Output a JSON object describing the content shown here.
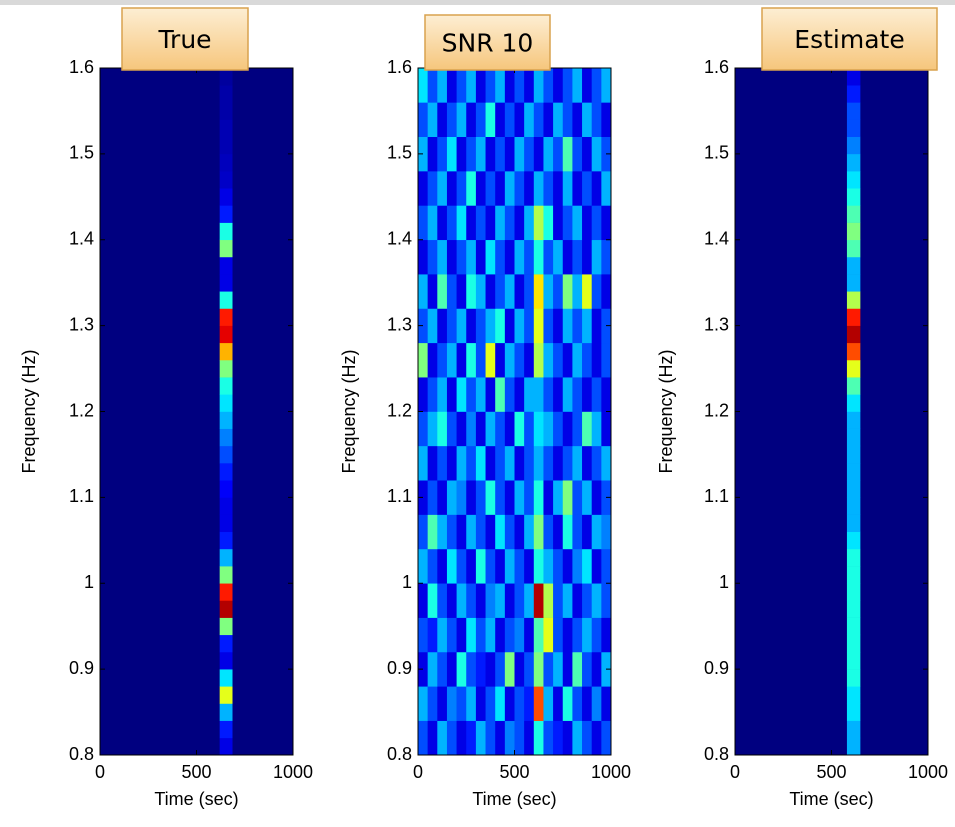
{
  "chart_data": [
    {
      "type": "heatmap",
      "title": "True",
      "xlabel": "Time (sec)",
      "ylabel": "Frequency (Hz)",
      "xlim": [
        0,
        1000
      ],
      "ylim": [
        0.8,
        1.6
      ],
      "xticks": [
        0,
        500,
        1000
      ],
      "yticks": [
        0.8,
        0.9,
        1,
        1.1,
        1.2,
        1.3,
        1.4,
        1.5,
        1.6
      ],
      "colormap": "jet",
      "clim": [
        0,
        1
      ],
      "xbins": [
        620,
        685
      ],
      "ybins": [
        0.8,
        0.82,
        0.84,
        0.86,
        0.88,
        0.9,
        0.92,
        0.94,
        0.96,
        0.98,
        1,
        1.02,
        1.04,
        1.06,
        1.08,
        1.1,
        1.12,
        1.14,
        1.16,
        1.18,
        1.2,
        1.22,
        1.24,
        1.26,
        1.28,
        1.3,
        1.32,
        1.34,
        1.36,
        1.38,
        1.4,
        1.42,
        1.44,
        1.46,
        1.48,
        1.5,
        1.52,
        1.54,
        1.56,
        1.58,
        1.6
      ],
      "values": [
        [
          0.1
        ],
        [
          0.15
        ],
        [
          0.3
        ],
        [
          0.6
        ],
        [
          0.35
        ],
        [
          0.1
        ],
        [
          0.15
        ],
        [
          0.5
        ],
        [
          0.95
        ],
        [
          0.85
        ],
        [
          0.5
        ],
        [
          0.3
        ],
        [
          0.15
        ],
        [
          0.1
        ],
        [
          0.1
        ],
        [
          0.12
        ],
        [
          0.15
        ],
        [
          0.2
        ],
        [
          0.25
        ],
        [
          0.3
        ],
        [
          0.35
        ],
        [
          0.4
        ],
        [
          0.5
        ],
        [
          0.7
        ],
        [
          0.9
        ],
        [
          0.85
        ],
        [
          0.4
        ],
        [
          0.1
        ],
        [
          0.1
        ],
        [
          0.5
        ],
        [
          0.4
        ],
        [
          0.15
        ],
        [
          0.1
        ],
        [
          0.07
        ],
        [
          0.06
        ],
        [
          0.05
        ],
        [
          0.05
        ],
        [
          0.04
        ],
        [
          0.04
        ],
        [
          0.03
        ]
      ]
    },
    {
      "type": "heatmap",
      "title": "SNR 10",
      "xlabel": "Time (sec)",
      "ylabel": "Frequency (Hz)",
      "xlim": [
        0,
        1000
      ],
      "ylim": [
        0.8,
        1.6
      ],
      "xticks": [
        0,
        500,
        1000
      ],
      "yticks": [
        0.8,
        0.9,
        1,
        1.1,
        1.2,
        1.3,
        1.4,
        1.5,
        1.6
      ],
      "colormap": "jet",
      "clim": [
        0,
        1
      ],
      "xbins": [
        0,
        50,
        100,
        150,
        200,
        250,
        300,
        350,
        400,
        450,
        500,
        550,
        600,
        650,
        700,
        750,
        800,
        850,
        900,
        950,
        1000
      ],
      "ybins": [
        0.8,
        0.84,
        0.88,
        0.92,
        0.96,
        1,
        1.04,
        1.08,
        1.12,
        1.16,
        1.2,
        1.24,
        1.28,
        1.32,
        1.36,
        1.4,
        1.44,
        1.48,
        1.52,
        1.56,
        1.6
      ],
      "values": [
        [
          0.2,
          0.1,
          0.3,
          0.2,
          0.1,
          0.15,
          0.3,
          0.2,
          0.1,
          0.25,
          0.2,
          0.1,
          0.4,
          0.2,
          0.15,
          0.1,
          0.3,
          0.2,
          0.1,
          0.2
        ],
        [
          0.3,
          0.2,
          0.1,
          0.25,
          0.2,
          0.3,
          0.1,
          0.2,
          0.35,
          0.1,
          0.2,
          0.15,
          0.8,
          0.3,
          0.1,
          0.4,
          0.2,
          0.1,
          0.25,
          0.1
        ],
        [
          0.1,
          0.3,
          0.2,
          0.1,
          0.4,
          0.2,
          0.15,
          0.1,
          0.2,
          0.5,
          0.1,
          0.2,
          0.5,
          0.2,
          0.3,
          0.1,
          0.45,
          0.2,
          0.1,
          0.3
        ],
        [
          0.2,
          0.15,
          0.3,
          0.2,
          0.1,
          0.35,
          0.2,
          0.3,
          0.1,
          0.2,
          0.25,
          0.1,
          0.45,
          0.6,
          0.2,
          0.1,
          0.2,
          0.3,
          0.2,
          0.1
        ],
        [
          0.1,
          0.4,
          0.2,
          0.1,
          0.3,
          0.2,
          0.1,
          0.25,
          0.3,
          0.1,
          0.2,
          0.3,
          0.95,
          0.55,
          0.2,
          0.3,
          0.1,
          0.2,
          0.3,
          0.2
        ],
        [
          0.3,
          0.2,
          0.1,
          0.35,
          0.2,
          0.1,
          0.4,
          0.2,
          0.1,
          0.3,
          0.2,
          0.1,
          0.4,
          0.3,
          0.2,
          0.1,
          0.25,
          0.35,
          0.1,
          0.2
        ],
        [
          0.2,
          0.45,
          0.3,
          0.2,
          0.1,
          0.3,
          0.2,
          0.1,
          0.35,
          0.2,
          0.1,
          0.3,
          0.5,
          0.2,
          0.1,
          0.4,
          0.2,
          0.1,
          0.3,
          0.25
        ],
        [
          0.1,
          0.2,
          0.1,
          0.3,
          0.25,
          0.1,
          0.2,
          0.4,
          0.2,
          0.1,
          0.3,
          0.2,
          0.4,
          0.1,
          0.3,
          0.5,
          0.2,
          0.3,
          0.1,
          0.2
        ],
        [
          0.3,
          0.1,
          0.2,
          0.1,
          0.3,
          0.2,
          0.35,
          0.1,
          0.2,
          0.3,
          0.1,
          0.2,
          0.3,
          0.2,
          0.1,
          0.2,
          0.3,
          0.1,
          0.2,
          0.3
        ],
        [
          0.2,
          0.3,
          0.4,
          0.2,
          0.1,
          0.25,
          0.1,
          0.3,
          0.2,
          0.1,
          0.4,
          0.2,
          0.35,
          0.3,
          0.2,
          0.1,
          0.2,
          0.45,
          0.3,
          0.1
        ],
        [
          0.1,
          0.2,
          0.3,
          0.1,
          0.35,
          0.2,
          0.3,
          0.1,
          0.45,
          0.2,
          0.1,
          0.3,
          0.3,
          0.2,
          0.1,
          0.3,
          0.2,
          0.1,
          0.2,
          0.1
        ],
        [
          0.5,
          0.1,
          0.2,
          0.3,
          0.1,
          0.4,
          0.2,
          0.6,
          0.1,
          0.3,
          0.2,
          0.1,
          0.55,
          0.3,
          0.2,
          0.1,
          0.3,
          0.2,
          0.1,
          0.2
        ],
        [
          0.2,
          0.3,
          0.1,
          0.2,
          0.3,
          0.1,
          0.2,
          0.3,
          0.4,
          0.1,
          0.3,
          0.2,
          0.6,
          0.2,
          0.1,
          0.3,
          0.2,
          0.3,
          0.1,
          0.2
        ],
        [
          0.3,
          0.1,
          0.45,
          0.2,
          0.1,
          0.4,
          0.3,
          0.1,
          0.2,
          0.3,
          0.1,
          0.2,
          0.65,
          0.3,
          0.2,
          0.5,
          0.3,
          0.6,
          0.2,
          0.1
        ],
        [
          0.1,
          0.2,
          0.3,
          0.1,
          0.2,
          0.3,
          0.1,
          0.35,
          0.2,
          0.1,
          0.3,
          0.2,
          0.4,
          0.2,
          0.3,
          0.1,
          0.2,
          0.1,
          0.3,
          0.2
        ],
        [
          0.2,
          0.3,
          0.1,
          0.2,
          0.35,
          0.1,
          0.2,
          0.1,
          0.3,
          0.2,
          0.1,
          0.3,
          0.55,
          0.4,
          0.1,
          0.2,
          0.3,
          0.1,
          0.2,
          0.1
        ],
        [
          0.1,
          0.2,
          0.3,
          0.1,
          0.2,
          0.4,
          0.1,
          0.2,
          0.1,
          0.3,
          0.2,
          0.1,
          0.3,
          0.2,
          0.1,
          0.3,
          0.1,
          0.2,
          0.1,
          0.3
        ],
        [
          0.3,
          0.1,
          0.2,
          0.35,
          0.1,
          0.2,
          0.3,
          0.1,
          0.2,
          0.1,
          0.3,
          0.2,
          0.1,
          0.3,
          0.2,
          0.45,
          0.2,
          0.1,
          0.3,
          0.2
        ],
        [
          0.2,
          0.3,
          0.1,
          0.2,
          0.3,
          0.1,
          0.2,
          0.4,
          0.1,
          0.2,
          0.1,
          0.3,
          0.2,
          0.1,
          0.3,
          0.2,
          0.1,
          0.3,
          0.2,
          0.1
        ],
        [
          0.35,
          0.2,
          0.3,
          0.1,
          0.2,
          0.3,
          0.1,
          0.2,
          0.3,
          0.1,
          0.2,
          0.1,
          0.3,
          0.2,
          0.1,
          0.2,
          0.3,
          0.1,
          0.2,
          0.3
        ]
      ]
    },
    {
      "type": "heatmap",
      "title": "Estimate",
      "xlabel": "Time (sec)",
      "ylabel": "Frequency (Hz)",
      "xlim": [
        0,
        1000
      ],
      "ylim": [
        0.8,
        1.6
      ],
      "xticks": [
        0,
        500,
        1000
      ],
      "yticks": [
        0.8,
        0.9,
        1,
        1.1,
        1.2,
        1.3,
        1.4,
        1.5,
        1.6
      ],
      "colormap": "jet",
      "clim": [
        0,
        1
      ],
      "xbins": [
        580,
        648
      ],
      "ybins": [
        0.8,
        0.82,
        0.84,
        0.86,
        0.88,
        0.9,
        0.92,
        0.94,
        0.96,
        0.98,
        1,
        1.02,
        1.04,
        1.06,
        1.08,
        1.1,
        1.12,
        1.14,
        1.16,
        1.18,
        1.2,
        1.22,
        1.24,
        1.26,
        1.28,
        1.3,
        1.32,
        1.34,
        1.36,
        1.38,
        1.4,
        1.42,
        1.44,
        1.46,
        1.48,
        1.5,
        1.52,
        1.54,
        1.56,
        1.58,
        1.6
      ],
      "values": [
        [
          0.3
        ],
        [
          0.3
        ],
        [
          0.35
        ],
        [
          0.35
        ],
        [
          0.4
        ],
        [
          0.4
        ],
        [
          0.4
        ],
        [
          0.4
        ],
        [
          0.4
        ],
        [
          0.4
        ],
        [
          0.4
        ],
        [
          0.4
        ],
        [
          0.35
        ],
        [
          0.3
        ],
        [
          0.3
        ],
        [
          0.3
        ],
        [
          0.3
        ],
        [
          0.3
        ],
        [
          0.3
        ],
        [
          0.3
        ],
        [
          0.35
        ],
        [
          0.45
        ],
        [
          0.6
        ],
        [
          0.8
        ],
        [
          0.95
        ],
        [
          0.85
        ],
        [
          0.55
        ],
        [
          0.3
        ],
        [
          0.3
        ],
        [
          0.45
        ],
        [
          0.5
        ],
        [
          0.45
        ],
        [
          0.4
        ],
        [
          0.35
        ],
        [
          0.3
        ],
        [
          0.25
        ],
        [
          0.2
        ],
        [
          0.2
        ],
        [
          0.15
        ],
        [
          0.1
        ]
      ]
    }
  ]
}
